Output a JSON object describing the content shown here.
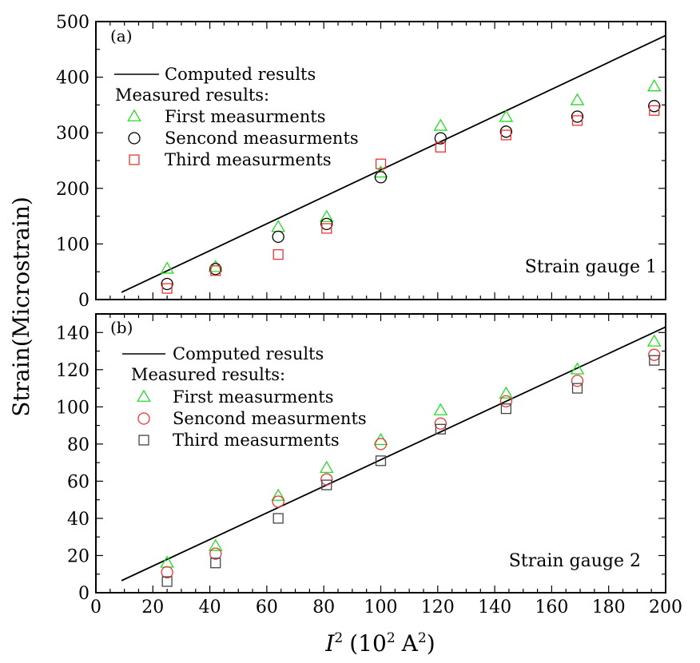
{
  "chart_data": [
    {
      "type": "scatter",
      "panel_label": "(a)",
      "annotation": "Strain gauge 1",
      "xlim": [
        0,
        200
      ],
      "ylim": [
        0,
        500
      ],
      "x_ticks": [
        0,
        20,
        40,
        60,
        80,
        100,
        120,
        140,
        160,
        180,
        200
      ],
      "y_ticks": [
        0,
        100,
        200,
        300,
        400,
        500
      ],
      "legend": {
        "position": "top-left",
        "line_label": "Computed results",
        "header": "Measured results:"
      },
      "line": {
        "name": "Computed results",
        "color": "#000000",
        "x": [
          9,
          200
        ],
        "y": [
          13,
          475
        ]
      },
      "series": [
        {
          "name": "First measurments",
          "marker": "triangle",
          "color": "#22dd22",
          "x": [
            25,
            42,
            64,
            81,
            100,
            121,
            144,
            169,
            196
          ],
          "y": [
            55,
            58,
            130,
            148,
            228,
            312,
            328,
            358,
            383
          ]
        },
        {
          "name": "Sencond measurments",
          "marker": "circle",
          "color": "#000000",
          "x": [
            25,
            42,
            64,
            81,
            100,
            121,
            144,
            169,
            196
          ],
          "y": [
            28,
            55,
            113,
            136,
            220,
            290,
            302,
            329,
            348
          ]
        },
        {
          "name": "Third measurments",
          "marker": "square",
          "color": "#ee3333",
          "x": [
            25,
            42,
            64,
            81,
            100,
            121,
            144,
            169,
            196
          ],
          "y": [
            20,
            52,
            81,
            128,
            244,
            274,
            296,
            322,
            340
          ]
        }
      ]
    },
    {
      "type": "scatter",
      "panel_label": "(b)",
      "annotation": "Strain gauge 2",
      "xlim": [
        0,
        200
      ],
      "ylim": [
        0,
        150
      ],
      "x_ticks": [
        0,
        20,
        40,
        60,
        80,
        100,
        120,
        140,
        160,
        180,
        200
      ],
      "x_tick_labels": [
        "0",
        "20",
        "40",
        "60",
        "80",
        "100",
        "120",
        "140",
        "160",
        "180",
        "200"
      ],
      "y_ticks": [
        0,
        20,
        40,
        60,
        80,
        100,
        120,
        140
      ],
      "legend": {
        "position": "top-left",
        "line_label": "Computed results",
        "header": "Measured results:"
      },
      "line": {
        "name": "Computed results",
        "color": "#000000",
        "x": [
          9,
          200
        ],
        "y": [
          6.5,
          143
        ]
      },
      "series": [
        {
          "name": "First measurments",
          "marker": "triangle",
          "color": "#22dd22",
          "x": [
            25,
            42,
            64,
            81,
            100,
            121,
            144,
            169,
            196
          ],
          "y": [
            16,
            25,
            52,
            67,
            82,
            98,
            107,
            120,
            135
          ]
        },
        {
          "name": "Sencond measurments",
          "marker": "circle",
          "color": "#ee3333",
          "x": [
            25,
            42,
            64,
            81,
            100,
            121,
            144,
            169,
            196
          ],
          "y": [
            11,
            21,
            49,
            61,
            80,
            91,
            103,
            114,
            128
          ]
        },
        {
          "name": "Third measurments",
          "marker": "square",
          "color": "#444444",
          "x": [
            25,
            42,
            64,
            81,
            100,
            121,
            144,
            169,
            196
          ],
          "y": [
            6,
            16,
            40,
            58,
            71,
            88,
            99,
            110,
            125
          ]
        }
      ]
    }
  ],
  "axes": {
    "ylabel": "Strain(Microstrain)",
    "xlabel_var": "I",
    "xlabel_exp": "2",
    "xlabel_units_open": "(10",
    "xlabel_units_exp1": "2",
    "xlabel_units_mid": "A",
    "xlabel_units_exp2": "2",
    "xlabel_units_close": ")"
  }
}
